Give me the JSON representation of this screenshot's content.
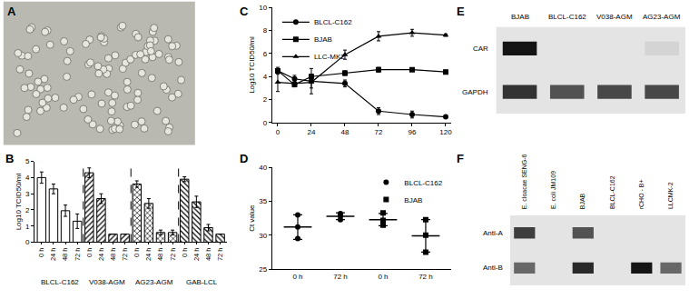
{
  "chart_data": [
    {
      "type": "image",
      "title": "A"
    },
    {
      "type": "bar",
      "title": "B",
      "ylabel": "Log10 TCID50/ml",
      "color": "#000000",
      "categories": [
        "0 h",
        "24 h",
        "48 h",
        "72 h"
      ],
      "series": [
        {
          "name": "BLCL-C162",
          "marker": "open",
          "values": [
            4.0,
            3.3,
            1.95,
            1.3
          ],
          "errors": [
            0.35,
            0.3,
            0.35,
            0.45
          ]
        },
        {
          "name": "V038-AGM",
          "marker": "hatch",
          "values": [
            4.3,
            2.7,
            0.5,
            0.5
          ],
          "errors": [
            0.3,
            0.3,
            0.0,
            0.0
          ]
        },
        {
          "name": "AG23-AGM",
          "marker": "crosshatch",
          "values": [
            3.6,
            2.4,
            0.6,
            0.6
          ],
          "errors": [
            0.2,
            0.3,
            0.15,
            0.15
          ]
        },
        {
          "name": "GAB-LCL",
          "marker": "backhatch",
          "values": [
            3.9,
            2.5,
            0.9,
            0.5
          ],
          "errors": [
            0.15,
            0.35,
            0.2,
            0.0
          ]
        }
      ],
      "ylim": [
        0,
        5
      ],
      "yticks": [
        0,
        1,
        2,
        3,
        4,
        5
      ]
    },
    {
      "type": "line",
      "title": "C",
      "ylabel": "Log10 TCID50/ml",
      "color": "#000000",
      "x": [
        0,
        12,
        24,
        48,
        72,
        96,
        120
      ],
      "series": [
        {
          "name": "BLCL-C162",
          "marker": "circle",
          "values": [
            4.5,
            3.8,
            3.6,
            3.4,
            1.0,
            0.7,
            0.5
          ],
          "errors": [
            0.3,
            0.3,
            1.1,
            0.3,
            0.3,
            0.3,
            0.1
          ]
        },
        {
          "name": "BJAB",
          "marker": "square",
          "values": [
            4.5,
            3.3,
            4.0,
            4.3,
            4.6,
            4.6,
            4.4
          ],
          "errors": [
            0.2,
            0.2,
            0.2,
            0.2,
            0.2,
            0.15,
            0.15
          ]
        },
        {
          "name": "LLC-MK2",
          "marker": "triangle",
          "values": [
            3.5,
            3.4,
            3.5,
            5.9,
            7.5,
            7.8,
            7.6
          ],
          "errors": [
            0.8,
            0.2,
            0.5,
            0.4,
            0.4,
            0.3,
            0.1
          ]
        }
      ],
      "xlim": [
        -4,
        124
      ],
      "xticks": [
        0,
        24,
        48,
        72,
        96,
        120
      ],
      "ylim": [
        0,
        10
      ],
      "yticks": [
        0,
        2,
        4,
        6,
        8,
        10
      ],
      "legend": "upper left"
    },
    {
      "type": "scatter",
      "title": "D",
      "ylabel": "Ct value",
      "color": "#000000",
      "categories": [
        "0 h",
        "72 h",
        "0 h",
        "72 h"
      ],
      "series": [
        {
          "name": "BLCL-C162",
          "marker": "circle",
          "values": [
            [
              33.0,
              29.5,
              31.2
            ],
            [
              33.2,
              32.3,
              32.8
            ],
            null,
            null
          ],
          "mean": [
            31.2,
            32.8,
            null,
            null
          ],
          "sd": [
            1.8,
            0.5,
            null,
            null
          ]
        },
        {
          "name": "BJAB",
          "marker": "square",
          "values": [
            null,
            null,
            [
              33.3,
              31.5,
              32.2
            ],
            [
              32.3,
              27.5,
              30.0
            ]
          ],
          "mean": [
            null,
            null,
            32.3,
            29.9
          ],
          "sd": [
            null,
            null,
            0.9,
            2.4
          ]
        }
      ],
      "ylim": [
        25,
        40
      ],
      "yticks": [
        25,
        30,
        35,
        40
      ],
      "legend": "upper right"
    },
    {
      "type": "blot",
      "title": "E",
      "color": "#141414",
      "lanes": [
        "BJAB",
        "BLCL-C162",
        "V038-AGM",
        "AG23-AGM"
      ],
      "rows": [
        "CAR",
        "GAPDH"
      ],
      "intensity": [
        [
          1.0,
          0,
          0,
          0.08
        ],
        [
          0.85,
          0.7,
          0.75,
          0.75
        ]
      ]
    },
    {
      "type": "blot",
      "title": "F",
      "color": "#141414",
      "lanes": [
        "E. cloacae SENG-6",
        "E. coli JM109",
        "BJAB",
        "BLCL-C162",
        "rCHO - B+",
        "LLCMK-2"
      ],
      "rows": [
        "Anti-A",
        "Anti-B"
      ],
      "intensity": [
        [
          0.8,
          0,
          0.7,
          0,
          0,
          0
        ],
        [
          0.6,
          0,
          0.9,
          0,
          1.0,
          0.6
        ]
      ]
    }
  ]
}
